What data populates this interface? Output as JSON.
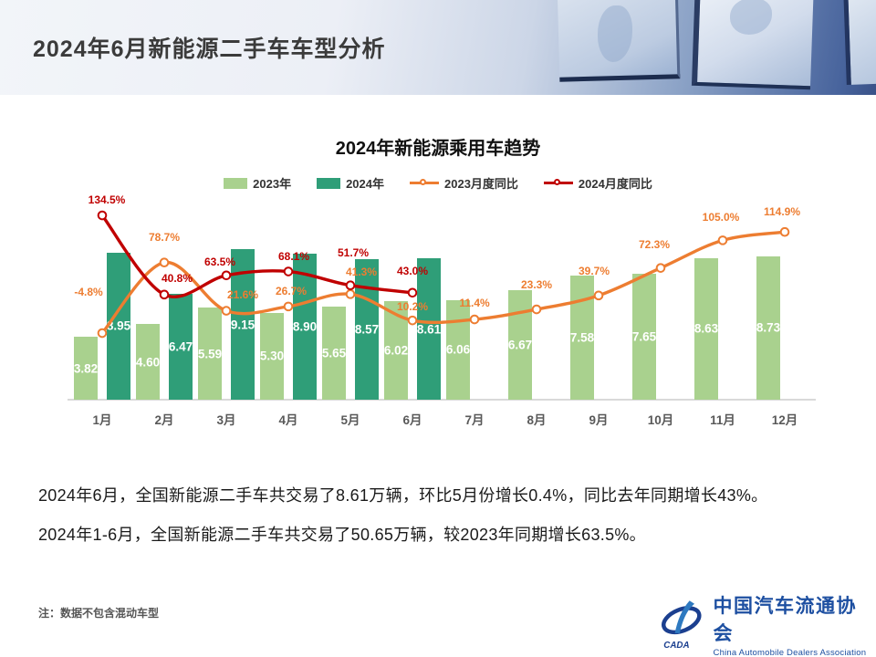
{
  "header": {
    "title": "2024年6月新能源二手车车型分析"
  },
  "chart": {
    "title": "2024年新能源乘用车趋势",
    "legend": [
      {
        "label": "2023年",
        "color": "#A9D18E",
        "marker": "swatch"
      },
      {
        "label": "2024年",
        "color": "#2F9E78",
        "marker": "swatch"
      },
      {
        "label": "2023月度同比",
        "color": "#ED7D31",
        "marker": "line-dot"
      },
      {
        "label": "2024月度同比",
        "color": "#C00000",
        "marker": "line-dot"
      }
    ]
  },
  "chart_data": {
    "type": "bar+line",
    "categories": [
      "1月",
      "2月",
      "3月",
      "4月",
      "5月",
      "6月",
      "7月",
      "8月",
      "9月",
      "10月",
      "11月",
      "12月"
    ],
    "series": [
      {
        "name": "2023年",
        "type": "bar",
        "color": "#A9D18E",
        "values": [
          3.82,
          4.6,
          5.59,
          5.3,
          5.65,
          6.02,
          6.06,
          6.67,
          7.58,
          7.65,
          8.63,
          8.73
        ],
        "labels": [
          "3.82",
          "4.60",
          "5.59",
          "5.30",
          "5.65",
          "6.02",
          "6.06",
          "6.67",
          "7.58",
          "7.65",
          "8.63",
          "8.73"
        ]
      },
      {
        "name": "2024年",
        "type": "bar",
        "color": "#2F9E78",
        "values": [
          8.95,
          6.47,
          9.15,
          8.9,
          8.57,
          8.61,
          null,
          null,
          null,
          null,
          null,
          null
        ],
        "labels": [
          "8.95",
          "6.47",
          "9.15",
          "8.90",
          "8.57",
          "8.61"
        ]
      },
      {
        "name": "2023月度同比",
        "type": "line",
        "color": "#ED7D31",
        "unit": "%",
        "values": [
          -4.8,
          78.7,
          21.6,
          26.7,
          41.3,
          10.2,
          11.4,
          23.3,
          39.7,
          72.3,
          105.0,
          114.9
        ],
        "labels": [
          "-4.8%",
          "78.7%",
          "21.6%",
          "26.7%",
          "41.3%",
          "10.2%",
          "11.4%",
          "23.3%",
          "39.7%",
          "72.3%",
          "105.0%",
          "114.9%"
        ]
      },
      {
        "name": "2024月度同比",
        "type": "line",
        "color": "#C00000",
        "unit": "%",
        "values": [
          134.5,
          40.8,
          63.5,
          68.1,
          51.7,
          43.0,
          null,
          null,
          null,
          null,
          null,
          null
        ],
        "labels": [
          "134.5%",
          "40.8%",
          "63.5%",
          "68.1%",
          "51.7%",
          "43.0%"
        ]
      }
    ],
    "xlabel": "",
    "ylabel": "",
    "grid": "off",
    "legend_position": "top-center"
  },
  "body": {
    "p1": "2024年6月，全国新能源二手车共交易了8.61万辆，环比5月份增长0.4%，同比去年同期增长43%。",
    "p2": "2024年1-6月，全国新能源二手车共交易了50.65万辆，较2023年同期增长63.5%。"
  },
  "footnote": {
    "text": "注：数据不包含混动车型"
  },
  "logo": {
    "badge": "CADA",
    "cn": "中国汽车流通协会",
    "en": "China Automobile Dealers Association",
    "color": "#1d4fa1"
  }
}
